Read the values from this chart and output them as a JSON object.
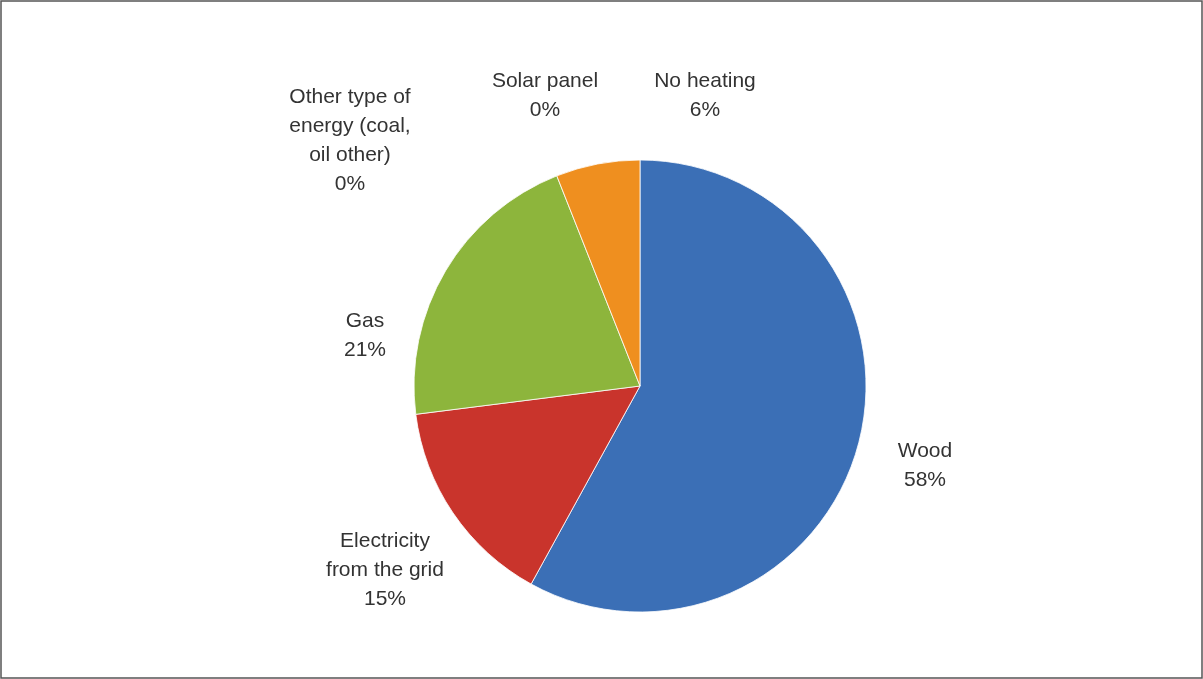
{
  "chart_data": {
    "type": "pie",
    "categories": [
      "Wood",
      "Electricity from the grid",
      "Gas",
      "Other type of energy (coal, oil other)",
      "Solar panel",
      "No heating"
    ],
    "values": [
      58,
      15,
      21,
      0,
      0,
      6
    ],
    "value_labels": [
      "58%",
      "15%",
      "21%",
      "0%",
      "0%",
      "6%"
    ],
    "colors": [
      "#3b6fb6",
      "#c9342c",
      "#8db53c",
      "#3f6e9e",
      "#2f5f8f",
      "#ef8f1f"
    ]
  }
}
